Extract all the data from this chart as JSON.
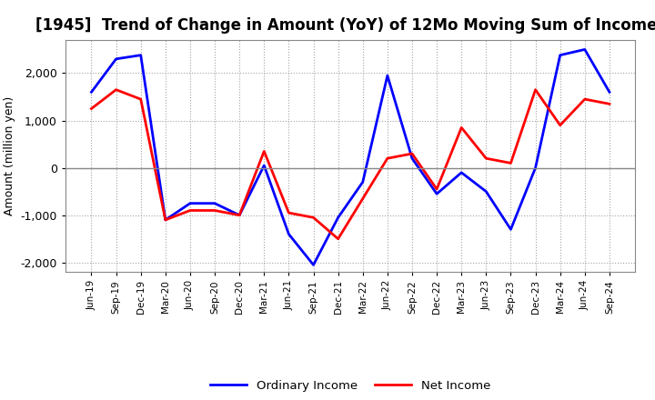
{
  "title": "[1945]  Trend of Change in Amount (YoY) of 12Mo Moving Sum of Incomes",
  "ylabel": "Amount (million yen)",
  "x_labels": [
    "Jun-19",
    "Sep-19",
    "Dec-19",
    "Mar-20",
    "Jun-20",
    "Sep-20",
    "Dec-20",
    "Mar-21",
    "Jun-21",
    "Sep-21",
    "Dec-21",
    "Mar-22",
    "Jun-22",
    "Sep-22",
    "Dec-22",
    "Mar-23",
    "Jun-23",
    "Sep-23",
    "Dec-23",
    "Mar-24",
    "Jun-24",
    "Sep-24"
  ],
  "ordinary_income": [
    1600,
    2300,
    2380,
    -1100,
    -750,
    -750,
    -1000,
    50,
    -1400,
    -2050,
    -1050,
    -300,
    1950,
    200,
    -550,
    -100,
    -500,
    -1300,
    0,
    2380,
    2500,
    1600
  ],
  "net_income": [
    1250,
    1650,
    1450,
    -1100,
    -900,
    -900,
    -1000,
    350,
    -950,
    -1050,
    -1500,
    -650,
    200,
    300,
    -450,
    850,
    200,
    100,
    1650,
    900,
    1450,
    1350
  ],
  "ordinary_color": "#0000FF",
  "net_color": "#FF0000",
  "ylim": [
    -2200,
    2700
  ],
  "yticks": [
    -2000,
    -1000,
    0,
    1000,
    2000
  ],
  "bg_color": "#FFFFFF",
  "plot_bg_color": "#FFFFFF",
  "grid_color": "#999999",
  "title_fontsize": 12,
  "legend_labels": [
    "Ordinary Income",
    "Net Income"
  ],
  "line_width": 2.0
}
